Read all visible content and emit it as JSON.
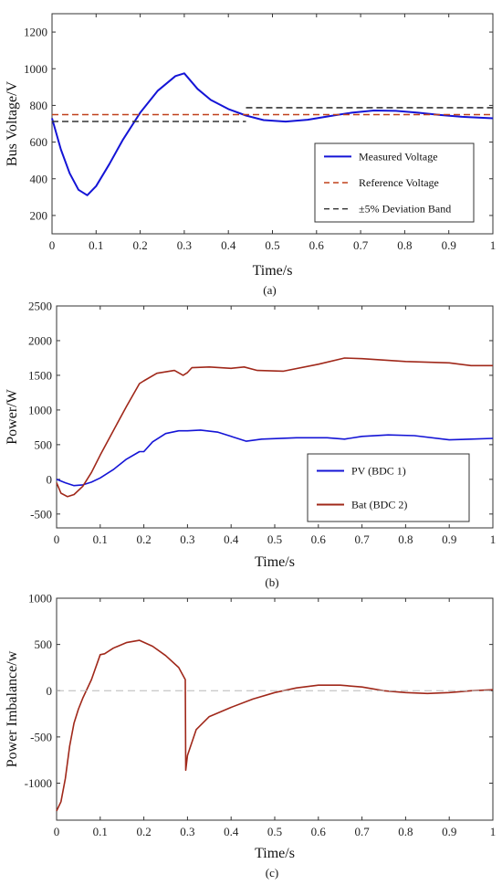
{
  "chart_data": [
    {
      "type": "line",
      "panel_label": "(a)",
      "xlabel": "Time/s",
      "ylabel": "Bus Voltage/V",
      "xlim": [
        0,
        1
      ],
      "ylim": [
        100,
        1300
      ],
      "xticks": [
        0,
        0.1,
        0.2,
        0.3,
        0.4,
        0.5,
        0.6,
        0.7,
        0.8,
        0.9,
        1
      ],
      "xtick_labels": [
        "0",
        "0.1",
        "0.2",
        "0.3",
        "0.4",
        "0.5",
        "0.6",
        "0.7",
        "0.8",
        "0.9",
        "1"
      ],
      "yticks": [
        200,
        400,
        600,
        800,
        1000,
        1200
      ],
      "ytick_labels": [
        "200",
        "400",
        "600",
        "800",
        "1000",
        "1200"
      ],
      "legend_position": "bottom-right",
      "series": [
        {
          "name": "Measured Voltage",
          "color": "#1414d6",
          "style": "solid",
          "x": [
            0,
            0.02,
            0.04,
            0.06,
            0.08,
            0.1,
            0.13,
            0.16,
            0.2,
            0.24,
            0.28,
            0.3,
            0.33,
            0.36,
            0.4,
            0.44,
            0.48,
            0.53,
            0.58,
            0.63,
            0.68,
            0.73,
            0.78,
            0.83,
            0.88,
            0.93,
            1.0
          ],
          "y": [
            730,
            560,
            430,
            340,
            310,
            360,
            480,
            610,
            760,
            880,
            960,
            975,
            890,
            830,
            780,
            745,
            720,
            712,
            722,
            742,
            760,
            772,
            770,
            760,
            748,
            738,
            730
          ]
        },
        {
          "name": "Reference Voltage",
          "color": "#c0401a",
          "style": "dashed",
          "x": [
            0,
            1
          ],
          "y": [
            750,
            750
          ]
        },
        {
          "name": "±5% Deviation Band",
          "color": "#333333",
          "style": "dashed",
          "segments": [
            {
              "x": [
                0,
                0.44
              ],
              "y": [
                712.5,
                712.5
              ]
            },
            {
              "x": [
                0.44,
                1
              ],
              "y": [
                787.5,
                787.5
              ]
            }
          ]
        }
      ]
    },
    {
      "type": "line",
      "panel_label": "(b)",
      "xlabel": "Time/s",
      "ylabel": "Power/W",
      "xlim": [
        0,
        1
      ],
      "ylim": [
        -700,
        2500
      ],
      "xticks": [
        0,
        0.1,
        0.2,
        0.3,
        0.4,
        0.5,
        0.6,
        0.7,
        0.8,
        0.9,
        1
      ],
      "xtick_labels": [
        "0",
        "0.1",
        "0.2",
        "0.3",
        "0.4",
        "0.5",
        "0.6",
        "0.7",
        "0.8",
        "0.9",
        "1"
      ],
      "yticks": [
        -500,
        0,
        500,
        1000,
        1500,
        2000,
        2500
      ],
      "ytick_labels": [
        "-500",
        "0",
        "500",
        "1000",
        "1500",
        "2000",
        "2500"
      ],
      "legend_position": "bottom-right",
      "series": [
        {
          "name": "PV   (BDC 1)",
          "color": "#1414d6",
          "x": [
            0,
            0.02,
            0.04,
            0.06,
            0.08,
            0.1,
            0.13,
            0.16,
            0.19,
            0.2,
            0.22,
            0.25,
            0.28,
            0.3,
            0.33,
            0.37,
            0.4,
            0.435,
            0.47,
            0.55,
            0.62,
            0.66,
            0.7,
            0.76,
            0.82,
            0.9,
            0.95,
            1.0
          ],
          "y": [
            0,
            -50,
            -90,
            -80,
            -40,
            20,
            140,
            290,
            400,
            400,
            540,
            660,
            700,
            700,
            710,
            680,
            620,
            550,
            580,
            600,
            600,
            580,
            620,
            640,
            630,
            570,
            580,
            590
          ]
        },
        {
          "name": "Bat   (BDC 2)",
          "color": "#a0281a",
          "x": [
            0,
            0.01,
            0.025,
            0.04,
            0.06,
            0.08,
            0.1,
            0.13,
            0.16,
            0.19,
            0.2,
            0.23,
            0.27,
            0.29,
            0.3,
            0.31,
            0.35,
            0.4,
            0.43,
            0.46,
            0.52,
            0.6,
            0.66,
            0.7,
            0.8,
            0.9,
            0.95,
            1.0
          ],
          "y": [
            -50,
            -200,
            -250,
            -220,
            -100,
            100,
            350,
            700,
            1050,
            1380,
            1420,
            1530,
            1570,
            1500,
            1540,
            1610,
            1620,
            1600,
            1620,
            1570,
            1560,
            1660,
            1750,
            1740,
            1700,
            1680,
            1640,
            1640
          ]
        }
      ]
    },
    {
      "type": "line",
      "panel_label": "(c)",
      "xlabel": "Time/s",
      "ylabel": "Power Imbalance/w",
      "xlim": [
        0,
        1
      ],
      "ylim": [
        -1400,
        1000
      ],
      "xticks": [
        0,
        0.1,
        0.2,
        0.3,
        0.4,
        0.5,
        0.6,
        0.7,
        0.8,
        0.9,
        1
      ],
      "xtick_labels": [
        "0",
        "0.1",
        "0.2",
        "0.3",
        "0.4",
        "0.5",
        "0.6",
        "0.7",
        "0.8",
        "0.9",
        "1"
      ],
      "yticks": [
        -1000,
        -500,
        0,
        500,
        1000
      ],
      "ytick_labels": [
        "-1000",
        "-500",
        "0",
        "500",
        "1000"
      ],
      "series": [
        {
          "name": "",
          "color": "#a0281a",
          "x": [
            0,
            0.01,
            0.02,
            0.03,
            0.04,
            0.05,
            0.06,
            0.08,
            0.1,
            0.11,
            0.13,
            0.16,
            0.19,
            0.22,
            0.25,
            0.28,
            0.295,
            0.296,
            0.3,
            0.32,
            0.35,
            0.4,
            0.45,
            0.5,
            0.55,
            0.6,
            0.65,
            0.7,
            0.75,
            0.8,
            0.85,
            0.9,
            0.95,
            1.0
          ],
          "y": [
            -1300,
            -1200,
            -950,
            -600,
            -350,
            -200,
            -80,
            120,
            390,
            400,
            460,
            520,
            545,
            480,
            380,
            250,
            120,
            -860,
            -700,
            -420,
            -280,
            -180,
            -90,
            -20,
            30,
            60,
            60,
            40,
            0,
            -20,
            -30,
            -20,
            0,
            10
          ]
        },
        {
          "name": "",
          "color": "#b8b8b8",
          "style": "dashed",
          "x": [
            0,
            1
          ],
          "y": [
            0,
            0
          ]
        }
      ]
    }
  ]
}
